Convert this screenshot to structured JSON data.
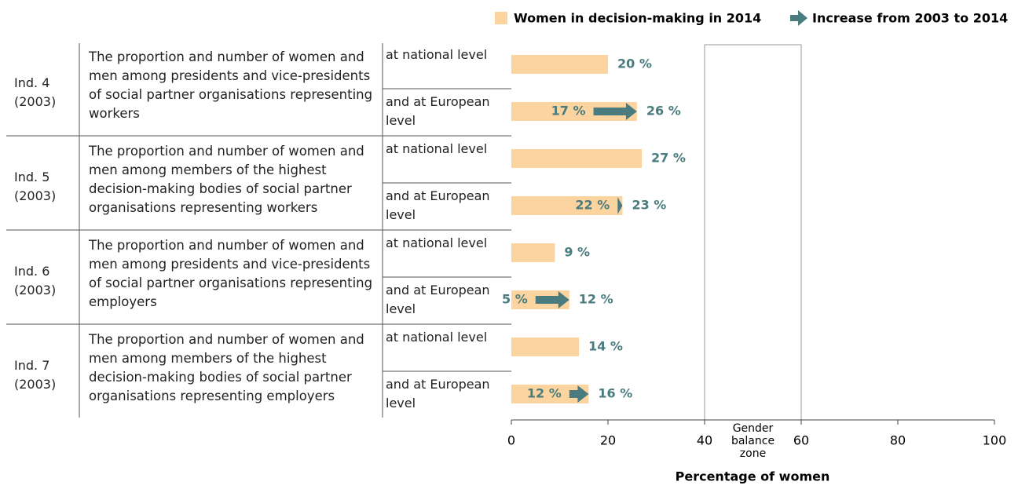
{
  "chart_data": {
    "type": "bar",
    "orientation": "horizontal",
    "xlabel": "Percentage of women",
    "xlim": [
      0,
      100
    ],
    "xticks": [
      0,
      20,
      40,
      60,
      80,
      100
    ],
    "balance_zone": {
      "range": [
        40,
        60
      ],
      "label": "Gender balance zone"
    },
    "groups": [
      {
        "indicator": "Ind. 4",
        "year": "(2003)",
        "description": "The proportion and number of women and men among presidents and vice-presidents of social partner organisations representing workers",
        "levels": [
          "at national level",
          "and at European level"
        ]
      },
      {
        "indicator": "Ind. 5",
        "year": "(2003)",
        "description": "The proportion and number of women and men among members of the highest decision-making bodies of social partner organisations representing workers",
        "levels": [
          "at national level",
          "and at European level"
        ]
      },
      {
        "indicator": "Ind. 6",
        "year": "(2003)",
        "description": "The proportion and number of women and men among presidents and vice-presidents of social partner organisations representing employers",
        "levels": [
          "at national level",
          "and at European level"
        ]
      },
      {
        "indicator": "Ind. 7",
        "year": "(2003)",
        "description": "The proportion and number of women and men among members of the highest decision-making bodies of social partner organisations representing employers",
        "levels": [
          "at national level",
          "and at European level"
        ]
      }
    ],
    "series": [
      {
        "name": "Women in decision-making in 2014",
        "color": "#fcd49f",
        "values": [
          20,
          26,
          27,
          23,
          9,
          12,
          14,
          16
        ],
        "value_labels": [
          "20 %",
          "26 %",
          "27 %",
          "23 %",
          "9 %",
          "12 %",
          "14 %",
          "16 %"
        ]
      },
      {
        "name": "Increase from 2003 to 2014",
        "color": "#4a7b7f",
        "values": [
          null,
          17,
          null,
          22,
          null,
          5,
          null,
          12
        ],
        "value_labels": [
          null,
          "17 %",
          null,
          "22 %",
          null,
          "5 %",
          null,
          "12 %"
        ]
      }
    ],
    "label_color": "#4a7b7f"
  }
}
